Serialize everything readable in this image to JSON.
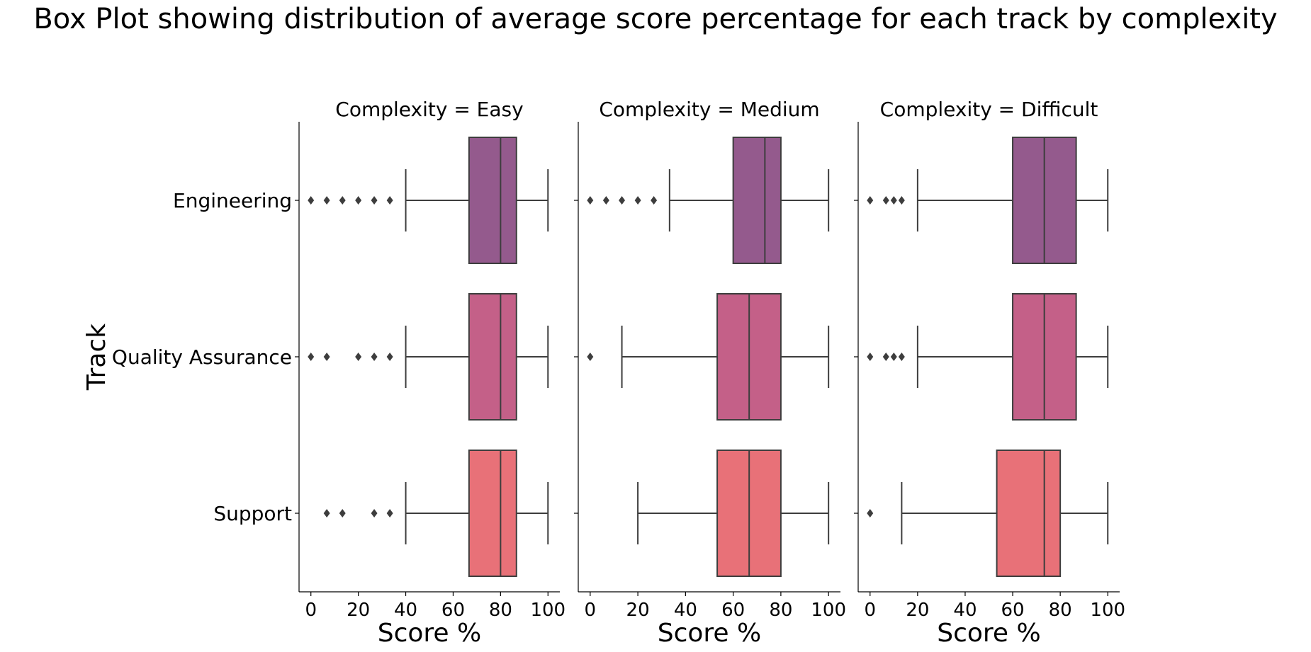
{
  "chart_data": {
    "type": "box",
    "title": "Box Plot showing distribution of average score percentage for each track by complexity",
    "ylabel": "Track",
    "xlabel": "Score %",
    "xlim": [
      -5,
      105
    ],
    "xticks": [
      0,
      20,
      40,
      60,
      80,
      100
    ],
    "categories": [
      "Engineering",
      "Quality Assurance",
      "Support"
    ],
    "colors": {
      "Engineering": "#945a8d",
      "Quality Assurance": "#c46088",
      "Support": "#e87178"
    },
    "panels": [
      {
        "title": "Complexity = Easy",
        "boxes": [
          {
            "category": "Engineering",
            "whisker_low": 40,
            "q1": 66.7,
            "median": 80,
            "q3": 86.7,
            "whisker_high": 100,
            "outliers": [
              0,
              6.7,
              13.3,
              20,
              26.7,
              33.3
            ]
          },
          {
            "category": "Quality Assurance",
            "whisker_low": 40,
            "q1": 66.7,
            "median": 80,
            "q3": 86.7,
            "whisker_high": 100,
            "outliers": [
              0,
              6.7,
              20,
              26.7,
              33.3
            ]
          },
          {
            "category": "Support",
            "whisker_low": 40,
            "q1": 66.7,
            "median": 80,
            "q3": 86.7,
            "whisker_high": 100,
            "outliers": [
              6.7,
              13.3,
              26.7,
              33.3
            ]
          }
        ]
      },
      {
        "title": "Complexity = Medium",
        "boxes": [
          {
            "category": "Engineering",
            "whisker_low": 33.3,
            "q1": 60,
            "median": 73.3,
            "q3": 80,
            "whisker_high": 100,
            "outliers": [
              0,
              6.7,
              13.3,
              20,
              26.7
            ]
          },
          {
            "category": "Quality Assurance",
            "whisker_low": 13.3,
            "q1": 53.3,
            "median": 66.7,
            "q3": 80,
            "whisker_high": 100,
            "outliers": [
              0
            ]
          },
          {
            "category": "Support",
            "whisker_low": 20,
            "q1": 53.3,
            "median": 66.7,
            "q3": 80,
            "whisker_high": 100,
            "outliers": []
          }
        ]
      },
      {
        "title": "Complexity = Difficult",
        "boxes": [
          {
            "category": "Engineering",
            "whisker_low": 20,
            "q1": 60,
            "median": 73.3,
            "q3": 86.7,
            "whisker_high": 100,
            "outliers": [
              0,
              6.7,
              10,
              13.3
            ]
          },
          {
            "category": "Quality Assurance",
            "whisker_low": 20,
            "q1": 60,
            "median": 73.3,
            "q3": 86.7,
            "whisker_high": 100,
            "outliers": [
              0,
              6.7,
              10,
              13.3
            ]
          },
          {
            "category": "Support",
            "whisker_low": 13.3,
            "q1": 53.3,
            "median": 73.3,
            "q3": 80,
            "whisker_high": 100,
            "outliers": [
              0
            ]
          }
        ]
      }
    ]
  }
}
